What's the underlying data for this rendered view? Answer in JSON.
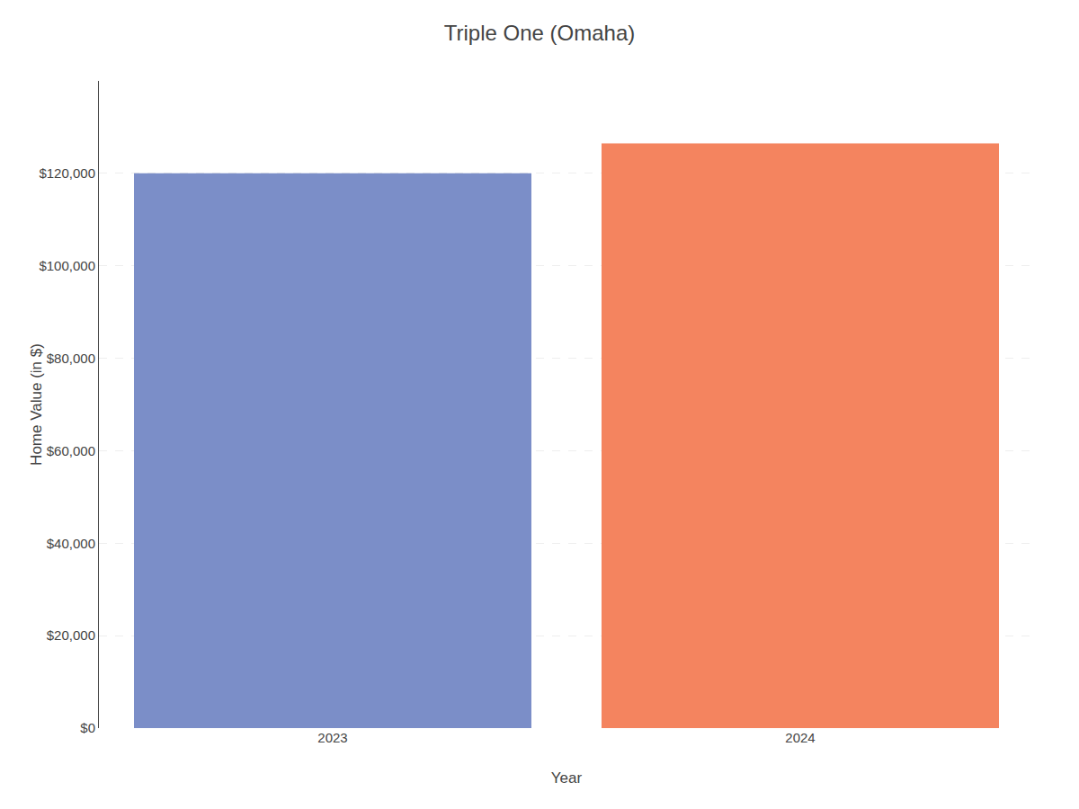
{
  "chart_data": {
    "type": "bar",
    "title": "Triple One (Omaha)",
    "xlabel": "Year",
    "ylabel": "Home Value (in $)",
    "categories": [
      "2023",
      "2024"
    ],
    "values": [
      120000,
      126500
    ],
    "colors": [
      "#7b8ec8",
      "#f4845f"
    ],
    "ylim": [
      0,
      140000
    ],
    "yticks": [
      {
        "value": 0,
        "label": "$0"
      },
      {
        "value": 20000,
        "label": "$20,000"
      },
      {
        "value": 40000,
        "label": "$40,000"
      },
      {
        "value": 60000,
        "label": "$60,000"
      },
      {
        "value": 80000,
        "label": "$80,000"
      },
      {
        "value": 100000,
        "label": "$100,000"
      },
      {
        "value": 120000,
        "label": "$120,000"
      }
    ],
    "grid": true
  }
}
